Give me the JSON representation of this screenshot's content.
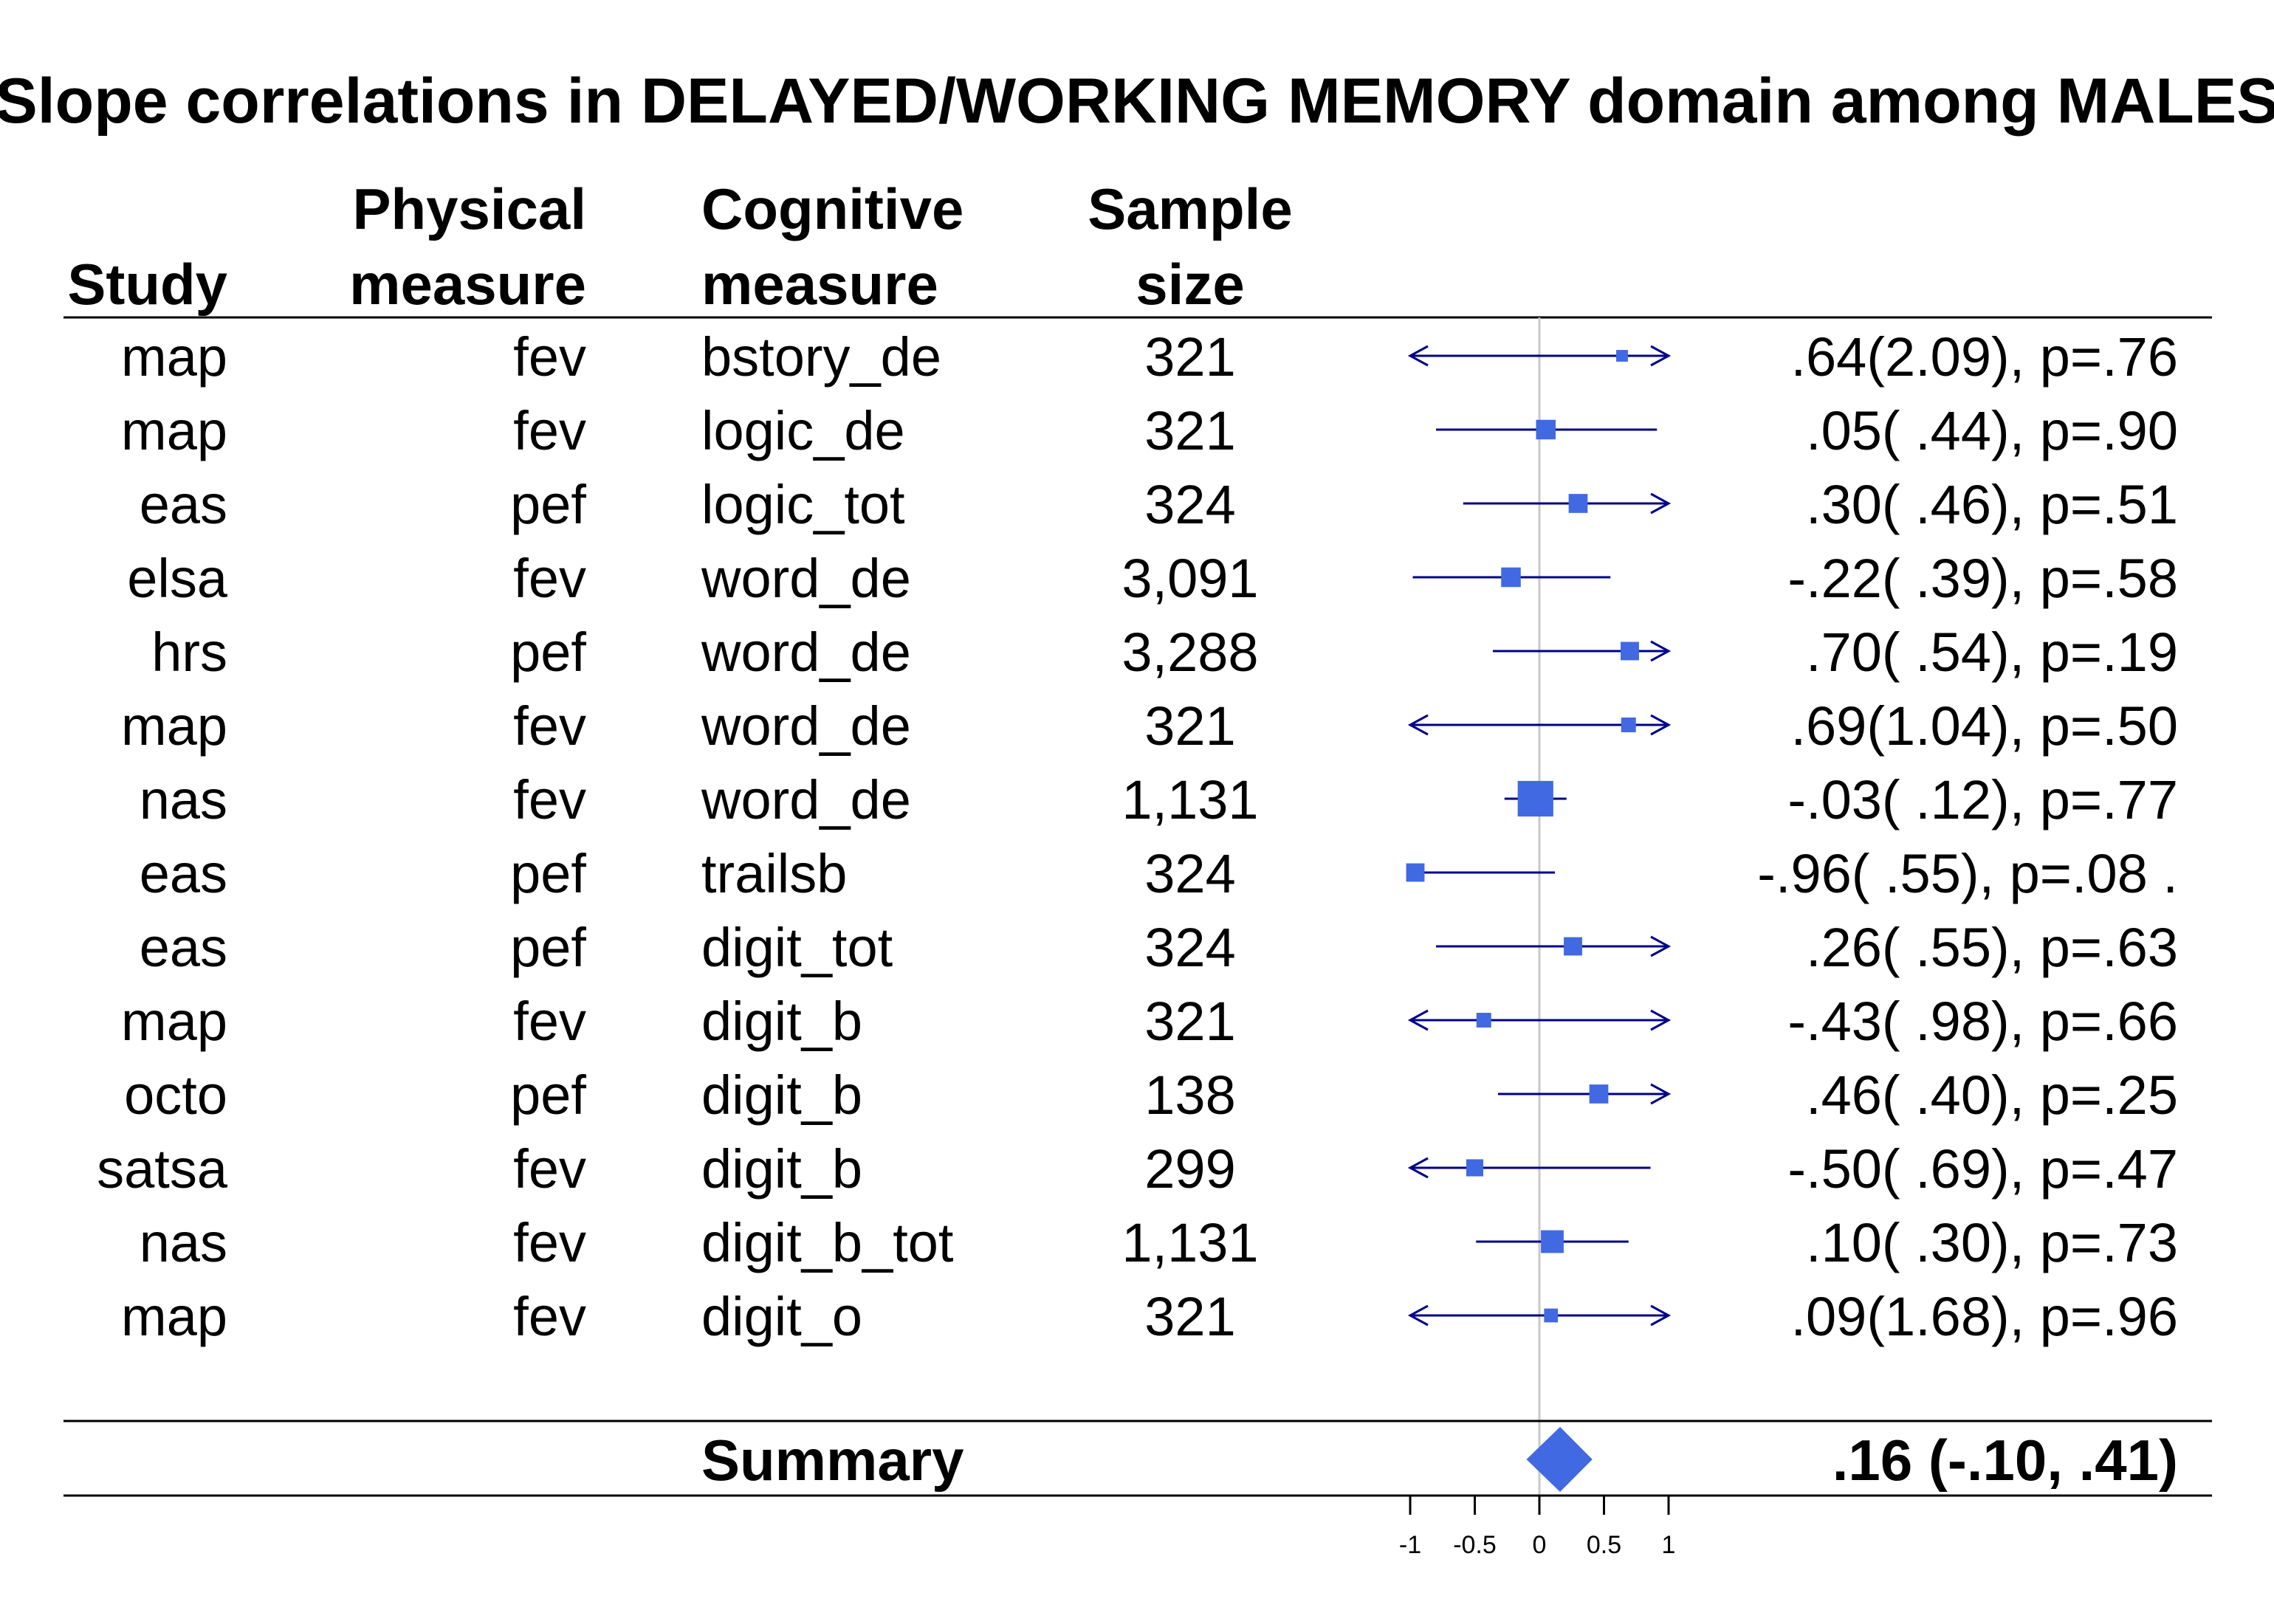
{
  "chart_data": {
    "type": "forest",
    "title": "Slope correlations in DELAYED/WORKING MEMORY domain among MALES",
    "columns": {
      "study": [
        "Study"
      ],
      "physical": [
        "Physical",
        "measure"
      ],
      "cognitive": [
        "Cognitive",
        "measure"
      ],
      "sample": [
        "Sample",
        "size"
      ]
    },
    "rows": [
      {
        "study": "map",
        "physical": "fev",
        "cognitive": "bstory_de",
        "n": "321",
        "est": 0.64,
        "lo": -1.0,
        "hi": 1.0,
        "arrow_lo": true,
        "arrow_hi": true,
        "weight": 0.3,
        "label": ".64(2.09), p=.76"
      },
      {
        "study": "map",
        "physical": "fev",
        "cognitive": "logic_de",
        "n": "321",
        "est": 0.05,
        "lo": -0.8,
        "hi": 0.91,
        "arrow_lo": false,
        "arrow_hi": false,
        "weight": 1.3,
        "label": ".05( .44), p=.90"
      },
      {
        "study": "eas",
        "physical": "pef",
        "cognitive": "logic_tot",
        "n": "324",
        "est": 0.3,
        "lo": -0.59,
        "hi": 1.0,
        "arrow_lo": false,
        "arrow_hi": true,
        "weight": 1.2,
        "label": ".30( .46), p=.51"
      },
      {
        "study": "elsa",
        "physical": "fev",
        "cognitive": "word_de",
        "n": "3,091",
        "est": -0.22,
        "lo": -0.98,
        "hi": 0.55,
        "arrow_lo": false,
        "arrow_hi": false,
        "weight": 1.3,
        "label": "-.22( .39), p=.58"
      },
      {
        "study": "hrs",
        "physical": "pef",
        "cognitive": "word_de",
        "n": "3,288",
        "est": 0.7,
        "lo": -0.36,
        "hi": 1.0,
        "arrow_lo": false,
        "arrow_hi": true,
        "weight": 1.1,
        "label": ".70( .54), p=.19"
      },
      {
        "study": "map",
        "physical": "fev",
        "cognitive": "word_de",
        "n": "321",
        "est": 0.69,
        "lo": -1.0,
        "hi": 1.0,
        "arrow_lo": true,
        "arrow_hi": true,
        "weight": 0.6,
        "label": ".69(1.04), p=.50"
      },
      {
        "study": "nas",
        "physical": "fev",
        "cognitive": "word_de",
        "n": "1,131",
        "est": -0.03,
        "lo": -0.27,
        "hi": 0.21,
        "arrow_lo": false,
        "arrow_hi": false,
        "weight": 5.5,
        "label": "-.03( .12), p=.77"
      },
      {
        "study": "eas",
        "physical": "pef",
        "cognitive": "trailsb",
        "n": "324",
        "est": -0.96,
        "lo": -1.0,
        "hi": 0.12,
        "arrow_lo": false,
        "arrow_hi": false,
        "weight": 1.1,
        "label": "-.96( .55), p=.08 ."
      },
      {
        "study": "eas",
        "physical": "pef",
        "cognitive": "digit_tot",
        "n": "324",
        "est": 0.26,
        "lo": -0.8,
        "hi": 1.0,
        "arrow_lo": false,
        "arrow_hi": true,
        "weight": 1.1,
        "label": ".26( .55), p=.63"
      },
      {
        "study": "map",
        "physical": "fev",
        "cognitive": "digit_b",
        "n": "321",
        "est": -0.43,
        "lo": -1.0,
        "hi": 1.0,
        "arrow_lo": true,
        "arrow_hi": true,
        "weight": 0.6,
        "label": "-.43( .98), p=.66"
      },
      {
        "study": "octo",
        "physical": "pef",
        "cognitive": "digit_b",
        "n": "138",
        "est": 0.46,
        "lo": -0.32,
        "hi": 1.0,
        "arrow_lo": false,
        "arrow_hi": true,
        "weight": 1.2,
        "label": ".46( .40), p=.25"
      },
      {
        "study": "satsa",
        "physical": "fev",
        "cognitive": "digit_b",
        "n": "299",
        "est": -0.5,
        "lo": -1.0,
        "hi": 0.86,
        "arrow_lo": true,
        "arrow_hi": false,
        "weight": 0.9,
        "label": "-.50( .69), p=.47"
      },
      {
        "study": "nas",
        "physical": "fev",
        "cognitive": "digit_b_tot",
        "n": "1,131",
        "est": 0.1,
        "lo": -0.49,
        "hi": 0.69,
        "arrow_lo": false,
        "arrow_hi": false,
        "weight": 1.9,
        "label": ".10( .30), p=.73"
      },
      {
        "study": "map",
        "physical": "fev",
        "cognitive": "digit_o",
        "n": "321",
        "est": 0.09,
        "lo": -1.0,
        "hi": 1.0,
        "arrow_lo": true,
        "arrow_hi": true,
        "weight": 0.5,
        "label": ".09(1.68), p=.96"
      }
    ],
    "summary": {
      "label": "Summary",
      "est": 0.16,
      "lo": -0.1,
      "hi": 0.41,
      "text": ".16 (-.10, .41)"
    },
    "xaxis": {
      "ticks": [
        -1,
        -0.5,
        0,
        0.5,
        1
      ],
      "tick_labels": [
        "-1",
        "-0.5",
        "0",
        "0.5",
        "1"
      ],
      "xlim": [
        -1,
        1
      ]
    },
    "colors": {
      "box": "#4169e1",
      "ci": "#00008b",
      "zero_line": "#c8c8c8",
      "rule": "#000000"
    }
  }
}
